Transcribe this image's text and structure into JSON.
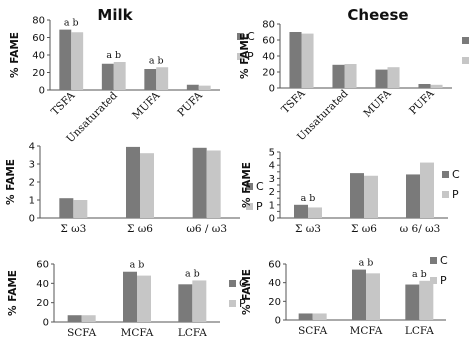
{
  "legend_labels": [
    "C",
    "P"
  ],
  "series_colors": [
    "#7a7a7a",
    "#c6c6c6"
  ],
  "chart_data": [
    {
      "type": "bar",
      "title": "Milk",
      "ylabel": "% FAME",
      "ylim": [
        0,
        80
      ],
      "yticks": [
        0,
        20,
        40,
        60,
        80
      ],
      "categories": [
        "TSFA",
        "Unsaturated",
        "MUFA",
        "PUFA"
      ],
      "series": [
        {
          "name": "C",
          "values": [
            69,
            30,
            24,
            6
          ]
        },
        {
          "name": "P",
          "values": [
            66,
            32,
            26,
            5
          ]
        }
      ],
      "annotations": [
        {
          "category": "TSFA",
          "text": "a b"
        },
        {
          "category": "Unsaturated",
          "text": "a b"
        },
        {
          "category": "MUFA",
          "text": "a b"
        }
      ],
      "legend": "right"
    },
    {
      "type": "bar",
      "title": "Cheese",
      "ylabel": "% FAME",
      "ylim": [
        0,
        80
      ],
      "yticks": [
        0,
        20,
        40,
        60,
        80
      ],
      "categories": [
        "TSFA",
        "Unsaturated",
        "MUFA",
        "PUFA"
      ],
      "series": [
        {
          "name": "C",
          "values": [
            70,
            29,
            23,
            5
          ]
        },
        {
          "name": "P",
          "values": [
            68,
            30,
            26,
            4
          ]
        }
      ],
      "annotations": [],
      "legend": "right"
    },
    {
      "type": "bar",
      "title": "",
      "ylabel": "% FAME",
      "ylim": [
        0,
        4
      ],
      "yticks": [
        0,
        1,
        2,
        3,
        4
      ],
      "categories": [
        "Σ ω3",
        "Σ ω6",
        "ω6 / ω3"
      ],
      "series": [
        {
          "name": "C",
          "values": [
            1.1,
            3.95,
            3.9
          ]
        },
        {
          "name": "P",
          "values": [
            1.0,
            3.6,
            3.75
          ]
        }
      ],
      "annotations": [],
      "legend": "right"
    },
    {
      "type": "bar",
      "title": "",
      "ylabel": "% FAME",
      "ylim": [
        0,
        5
      ],
      "yticks": [
        0,
        0.5,
        1,
        1.5,
        2,
        2.5,
        3,
        3.5,
        4,
        4.5,
        5
      ],
      "ytick_labels": [
        "0",
        "",
        "1",
        "",
        "2",
        "",
        "3",
        "",
        "4",
        "",
        "5"
      ],
      "categories": [
        "Σ ω3",
        "Σ ω6",
        "ω 6/ ω3"
      ],
      "series": [
        {
          "name": "C",
          "values": [
            1.0,
            3.4,
            3.3
          ]
        },
        {
          "name": "P",
          "values": [
            0.8,
            3.2,
            4.2
          ]
        }
      ],
      "annotations": [
        {
          "category": "Σ ω3",
          "text": "a b"
        }
      ],
      "legend": "right"
    },
    {
      "type": "bar",
      "title": "",
      "ylabel": "% FAME",
      "ylim": [
        0,
        60
      ],
      "yticks": [
        0,
        20,
        40,
        60
      ],
      "categories": [
        "SCFA",
        "MCFA",
        "LCFA"
      ],
      "series": [
        {
          "name": "C",
          "values": [
            7,
            52,
            39
          ]
        },
        {
          "name": "P",
          "values": [
            7,
            48,
            43
          ]
        }
      ],
      "annotations": [
        {
          "category": "MCFA",
          "text": "a b"
        },
        {
          "category": "LCFA",
          "text": "a b"
        }
      ],
      "legend": "right"
    },
    {
      "type": "bar",
      "title": "",
      "ylabel": "% FAME",
      "ylim": [
        0,
        60
      ],
      "yticks": [
        0,
        20,
        40,
        60
      ],
      "categories": [
        "SCFA",
        "MCFA",
        "LCFA"
      ],
      "series": [
        {
          "name": "C",
          "values": [
            7,
            54,
            38
          ]
        },
        {
          "name": "P",
          "values": [
            7,
            50,
            42
          ]
        }
      ],
      "annotations": [
        {
          "category": "MCFA",
          "text": "a b"
        },
        {
          "category": "LCFA",
          "text": "a b"
        }
      ],
      "legend": "right"
    }
  ]
}
